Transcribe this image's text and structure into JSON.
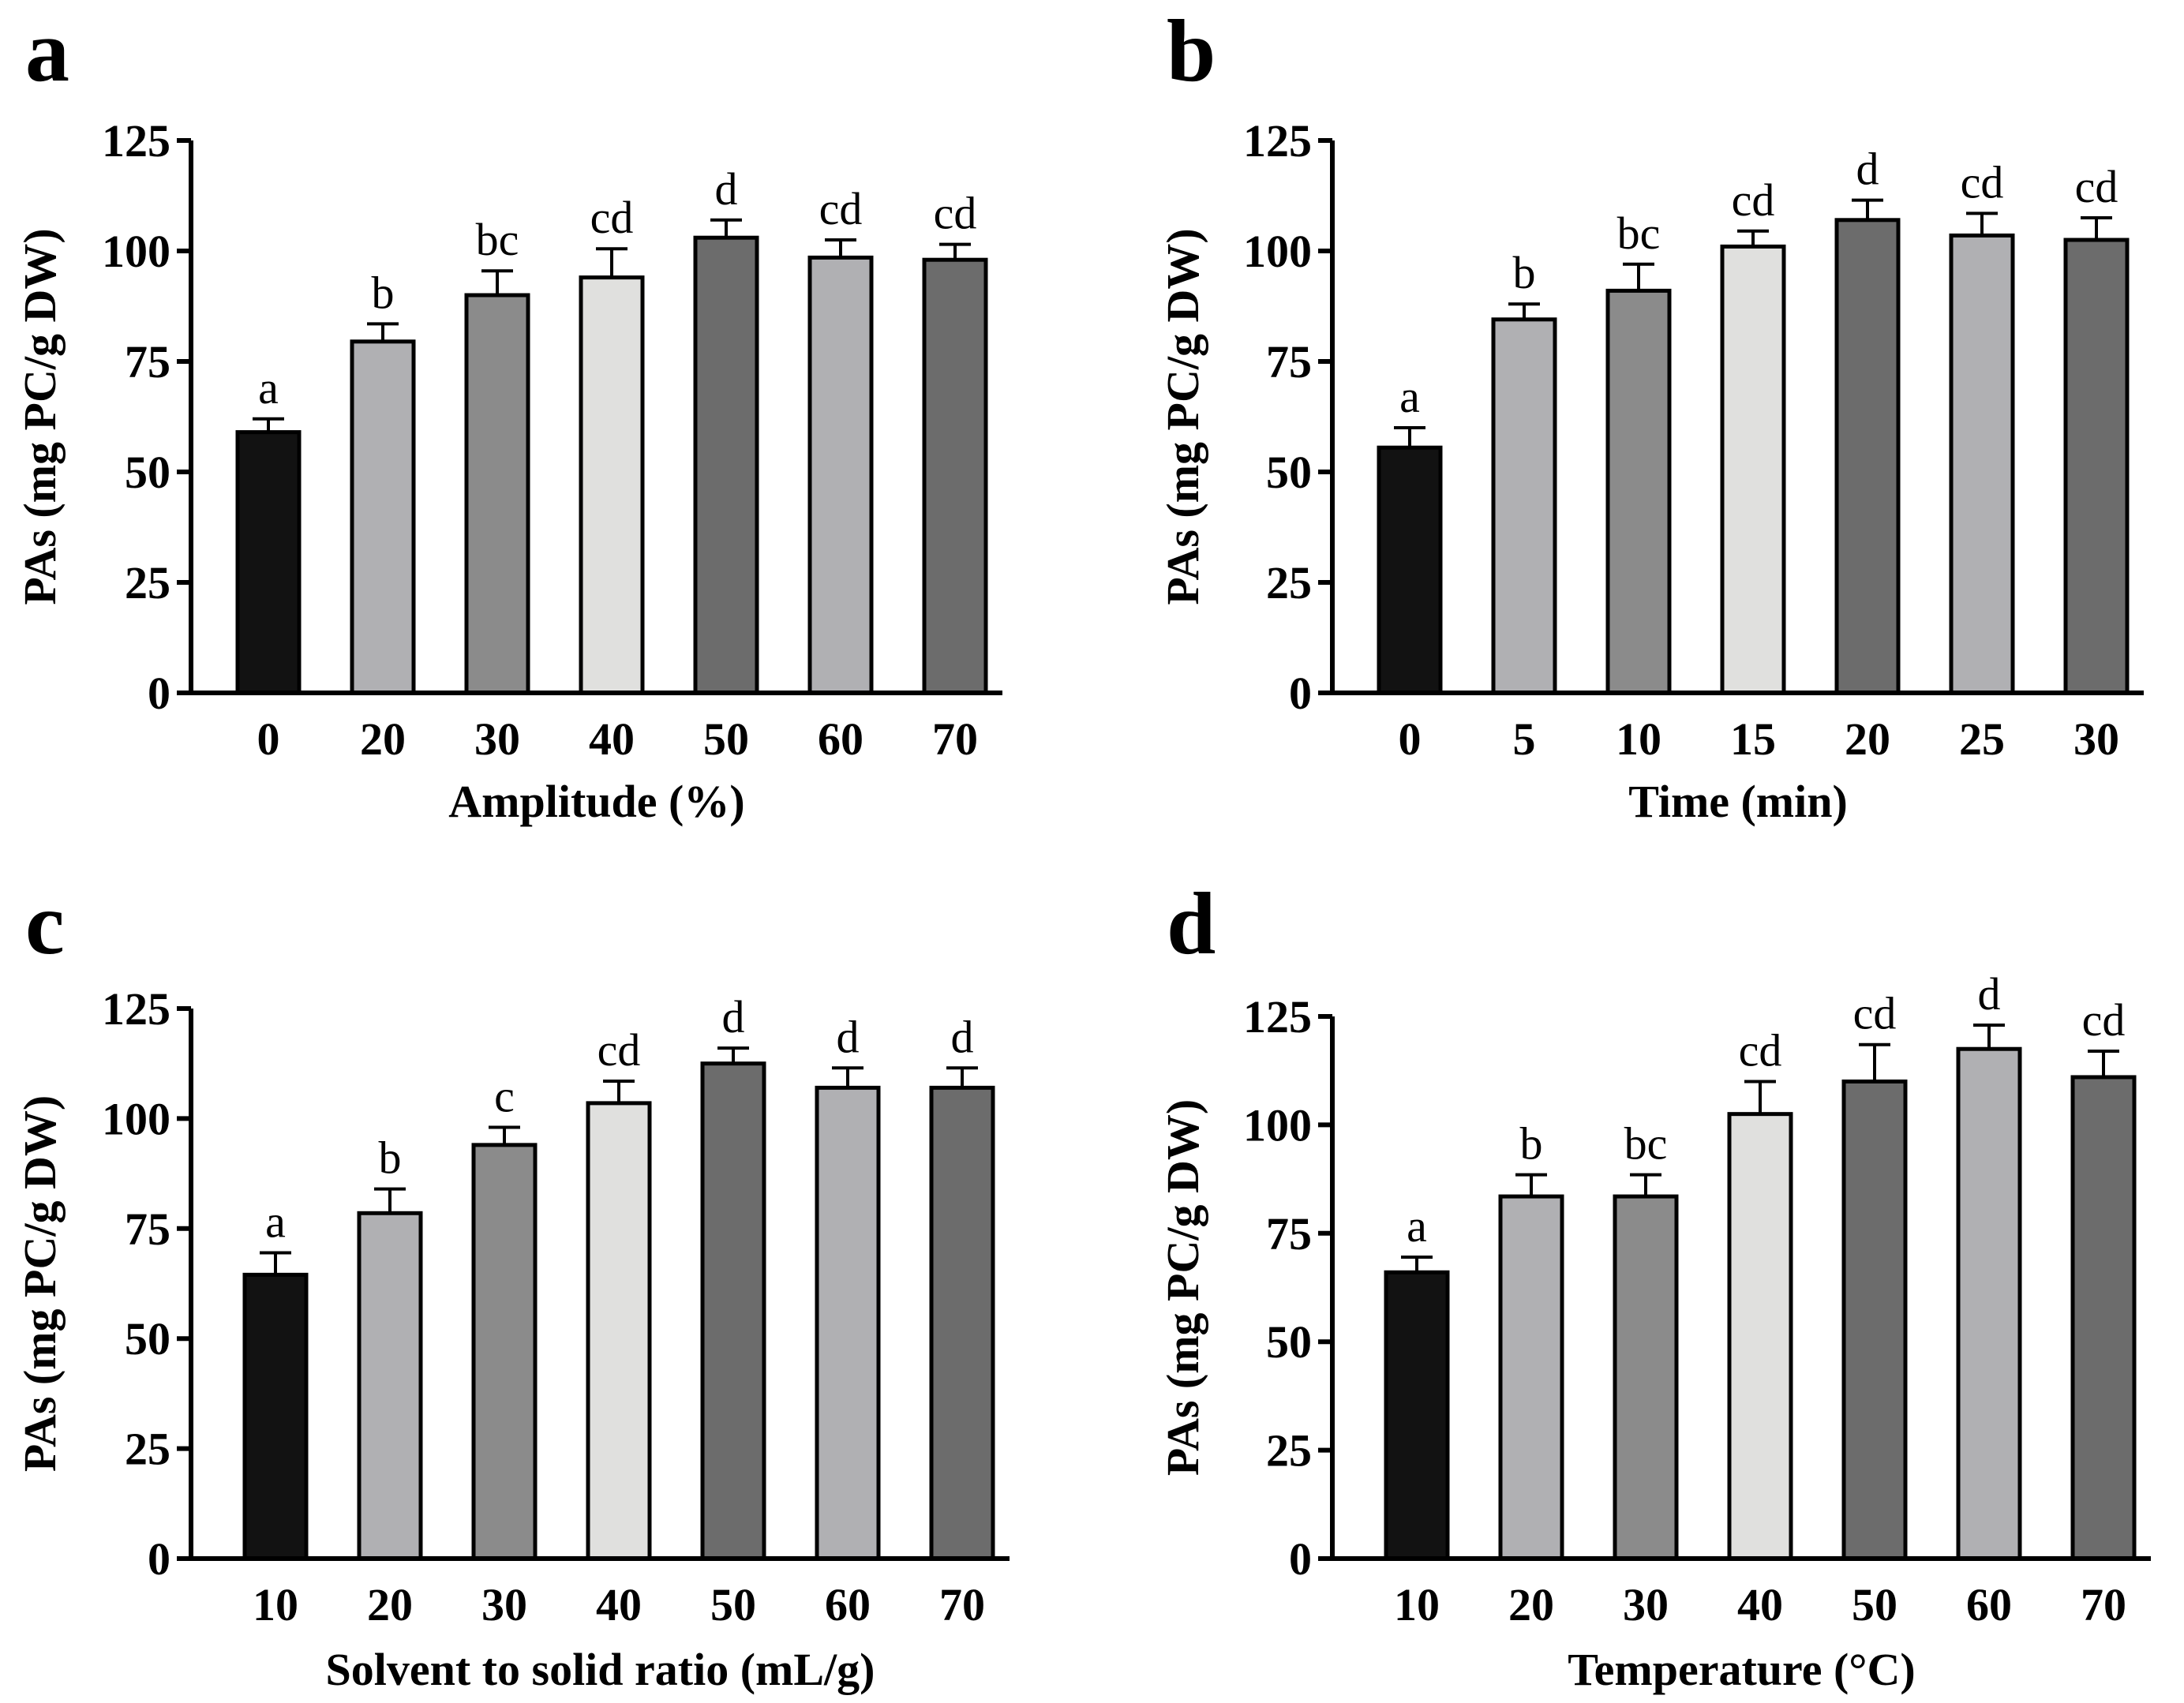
{
  "figure": {
    "fill_colors": [
      "#121212",
      "#b0b0b3",
      "#8b8b8b",
      "#e0e0de",
      "#6c6c6c",
      "#b0b0b3",
      "#6c6c6c"
    ]
  },
  "chart_data": [
    {
      "type": "bar",
      "panel": "a",
      "categories": [
        "0",
        "20",
        "30",
        "40",
        "50",
        "60",
        "70"
      ],
      "values": [
        59,
        79.5,
        90,
        94,
        103,
        98.5,
        98
      ],
      "errors": [
        3,
        4,
        5.5,
        6.5,
        4,
        4,
        3.5
      ],
      "labels": [
        "a",
        "b",
        "bc",
        "cd",
        "d",
        "cd",
        "cd"
      ],
      "xlabel": "Amplitude (%)",
      "ylabel": "PAs (mg PC/g DW)",
      "ylim": [
        0,
        125
      ],
      "yticks": [
        "0",
        "25",
        "50",
        "75",
        "100",
        "125"
      ]
    },
    {
      "type": "bar",
      "panel": "b",
      "categories": [
        "0",
        "5",
        "10",
        "15",
        "20",
        "25",
        "30"
      ],
      "values": [
        55.5,
        84.5,
        91,
        101,
        107,
        103.5,
        102.5
      ],
      "errors": [
        4.5,
        3.5,
        6,
        3.5,
        4.5,
        5,
        5
      ],
      "labels": [
        "a",
        "b",
        "bc",
        "cd",
        "d",
        "cd",
        "cd"
      ],
      "xlabel": "Time (min)",
      "ylabel": "PAs (mg PC/g DW)",
      "ylim": [
        0,
        125
      ],
      "yticks": [
        "0",
        "25",
        "50",
        "75",
        "100",
        "125"
      ]
    },
    {
      "type": "bar",
      "panel": "c",
      "categories": [
        "10",
        "20",
        "30",
        "40",
        "50",
        "60",
        "70"
      ],
      "values": [
        64.5,
        78.5,
        94,
        103.5,
        112.5,
        107,
        107
      ],
      "errors": [
        5,
        5.5,
        4,
        5,
        3.5,
        4.5,
        4.5
      ],
      "labels": [
        "a",
        "b",
        "c",
        "cd",
        "d",
        "d",
        "d"
      ],
      "xlabel": "Solvent to solid ratio (mL/g)",
      "ylabel": "PAs (mg PC/g DW)",
      "ylim": [
        0,
        125
      ],
      "yticks": [
        "0",
        "25",
        "50",
        "75",
        "100",
        "125"
      ]
    },
    {
      "type": "bar",
      "panel": "d",
      "categories": [
        "10",
        "20",
        "30",
        "40",
        "50",
        "60",
        "70"
      ],
      "values": [
        66,
        83.5,
        83.5,
        102.5,
        110,
        117.5,
        111
      ],
      "errors": [
        3.5,
        5,
        5,
        7.5,
        8.5,
        5.5,
        6
      ],
      "labels": [
        "a",
        "b",
        "bc",
        "cd",
        "cd",
        "d",
        "cd"
      ],
      "xlabel": "Temperature (°C)",
      "ylabel": "PAs (mg PC/g DW)",
      "ylim": [
        0,
        125
      ],
      "yticks": [
        "0",
        "25",
        "50",
        "75",
        "100",
        "125"
      ]
    }
  ]
}
